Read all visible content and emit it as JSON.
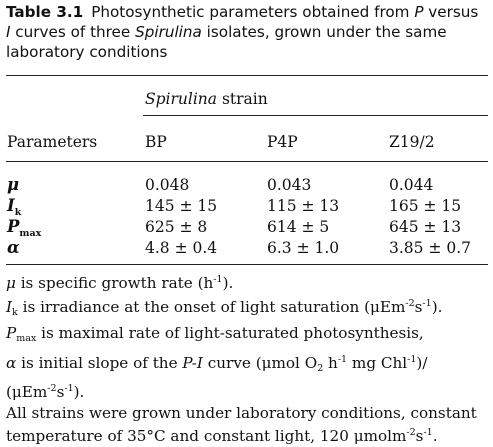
{
  "caption": {
    "label": "Table 3.1",
    "line1_a": "Photosynthetic parameters obtained from ",
    "line1_p": "P",
    "line1_b": " versus",
    "line2_i": "I",
    "line2_a": " curves of three ",
    "line2_sp": "Spirulina",
    "line2_b": " isolates, grown under the same",
    "line3": "laboratory conditions"
  },
  "table": {
    "group_header_italic": "Spirulina",
    "group_header_rest": " strain",
    "col_parameters": "Parameters",
    "columns": [
      "BP",
      "P4P",
      "Z19/2"
    ],
    "rows": [
      {
        "symbol": "μ",
        "subscript": "",
        "values": [
          "0.048",
          "0.043",
          "0.044"
        ]
      },
      {
        "symbol": "I",
        "subscript": "k",
        "values": [
          "145 ± 15",
          "115 ± 13",
          "165 ± 15"
        ]
      },
      {
        "symbol": "P",
        "subscript": "max",
        "values": [
          "625 ± 8",
          "614 ± 5",
          "645 ± 13"
        ]
      },
      {
        "symbol": "α",
        "subscript": "",
        "values": [
          "4.8 ± 0.4",
          "6.3 ± 1.0",
          "3.85 ± 0.7"
        ]
      }
    ]
  },
  "notes": {
    "n1_sym": "μ",
    "n1_text": " is specific growth rate (h",
    "n1_sup": "-1",
    "n1_end": ").",
    "n2_sym": "I",
    "n2_sub": "k",
    "n2_text": " is irradiance at the onset of light saturation (μEm",
    "n2_sup1": "-2",
    "n2_mid": "s",
    "n2_sup2": "-1",
    "n2_end": ").",
    "n3_sym": "P",
    "n3_sub": "max",
    "n3_text": " is maximal rate of light-saturated photosynthesis,",
    "n4_sym": "α",
    "n4_a": " is initial slope of the ",
    "n4_pi": "P-I",
    "n4_b": " curve (μmol O",
    "n4_sub": "2",
    "n4_c": " h",
    "n4_sup1": "-1",
    "n4_d": " mg Chl",
    "n4_sup2": "-1",
    "n4_e": ")/",
    "n5_a": "(μEm",
    "n5_sup1": "-2",
    "n5_b": "s",
    "n5_sup2": "-1",
    "n5_c": ").",
    "n6": "All strains were grown under laboratory conditions, constant",
    "n7_a": "temperature of 35°C and constant light, 120 μmolm",
    "n7_sup1": "-2",
    "n7_b": "s",
    "n7_sup2": "-1",
    "n7_c": "."
  }
}
